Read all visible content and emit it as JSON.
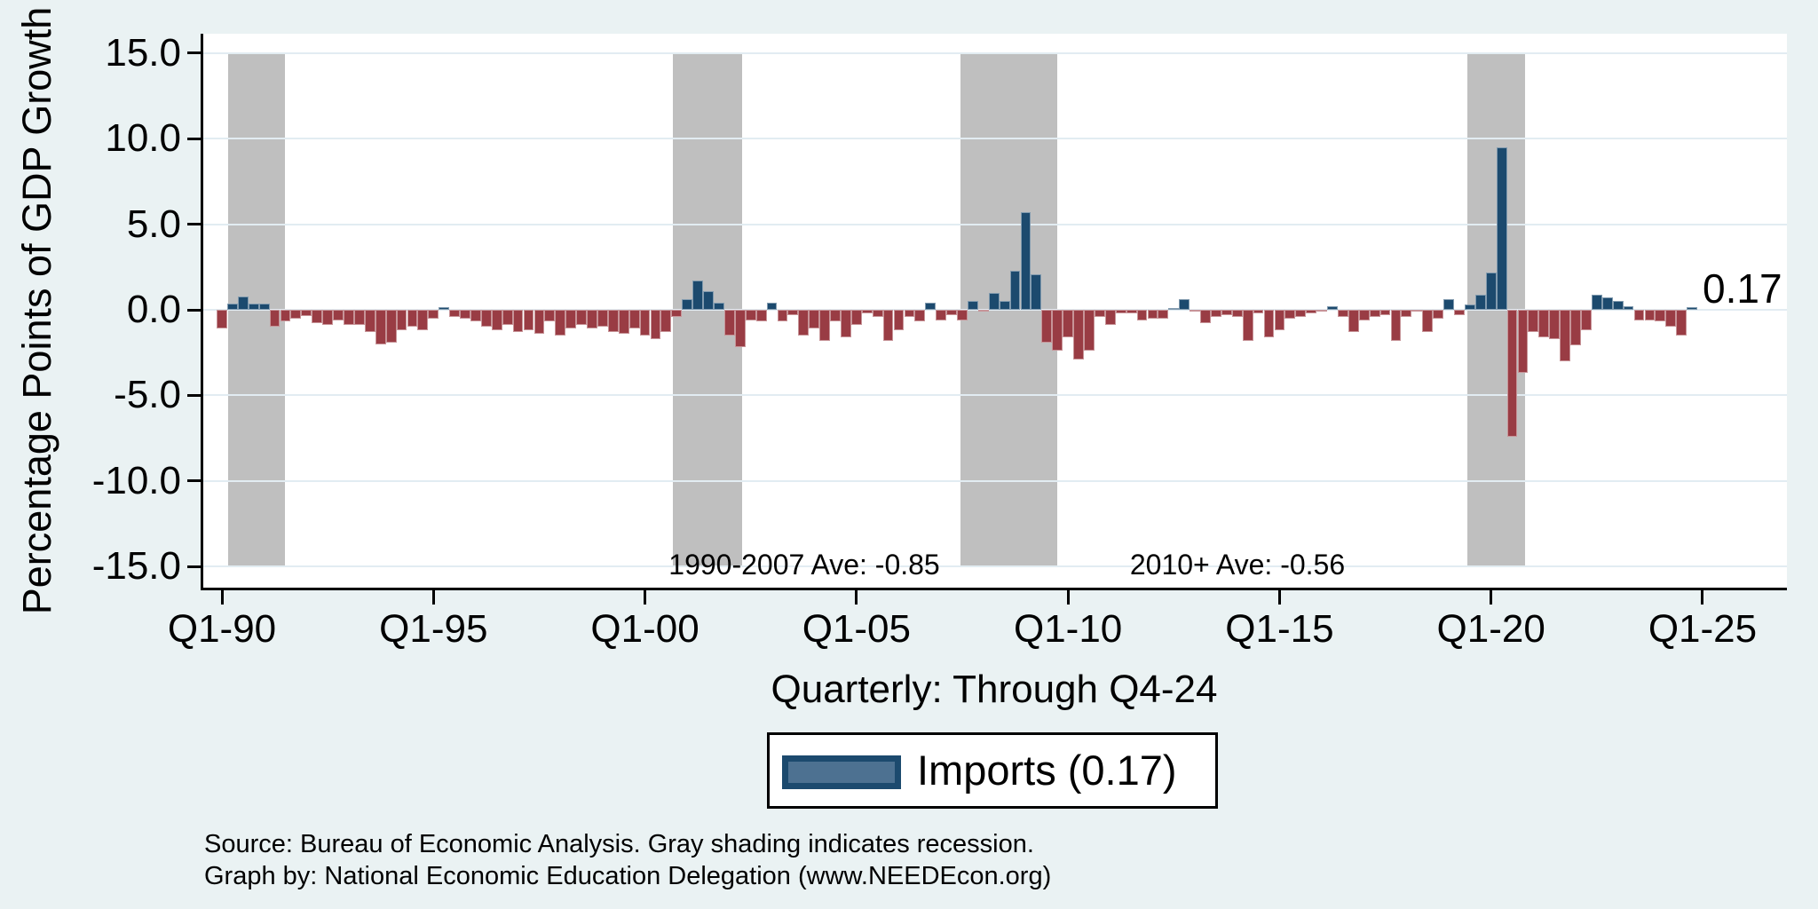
{
  "figure": {
    "y_axis": {
      "title": "Percentage Points of GDP Growth",
      "tick_labels": [
        "15.0",
        "10.0",
        "5.0",
        "0.0",
        "-5.0",
        "-10.0",
        "-15.0"
      ],
      "tick_values": [
        15,
        10,
        5,
        0,
        -5,
        -10,
        -15
      ]
    },
    "x_axis": {
      "title": "Quarterly: Through Q4-24",
      "ticks": [
        {
          "label": "Q1-90",
          "year": 1990
        },
        {
          "label": "Q1-95",
          "year": 1995
        },
        {
          "label": "Q1-00",
          "year": 2000
        },
        {
          "label": "Q1-05",
          "year": 2005
        },
        {
          "label": "Q1-10",
          "year": 2010
        },
        {
          "label": "Q1-15",
          "year": 2015
        },
        {
          "label": "Q1-20",
          "year": 2020
        },
        {
          "label": "Q1-25",
          "year": 2025
        }
      ]
    },
    "annotations": [
      {
        "text": "1990-2007 Ave: -0.85",
        "x_year": 2003.8
      },
      {
        "text": "2010+ Ave: -0.56",
        "x_year": 2014.0
      }
    ],
    "recessions": [
      {
        "start_year": 1990.15,
        "end_year": 1991.5
      },
      {
        "start_year": 2000.65,
        "end_year": 2002.3
      },
      {
        "start_year": 2007.45,
        "end_year": 2009.75
      },
      {
        "start_year": 2019.45,
        "end_year": 2020.8
      }
    ],
    "colors": {
      "background": "#eaf2f3",
      "plot_background": "#ffffff",
      "gridline": "#e2ecf2",
      "positive_bar": "#1c4a6e",
      "negative_bar": "#993c44",
      "recession_band": "#bfbfbf",
      "legend_swatch_fill": "#4d7191",
      "legend_swatch_border": "#1c4a6e",
      "axis": "#000000"
    },
    "legend": {
      "label": "Imports (0.17)"
    },
    "notes": [
      "Source: Bureau of Economic Analysis. Gray shading indicates recession.",
      "Graph by: National Economic Education Delegation (www.NEEDEcon.org)"
    ]
  },
  "chart_data": {
    "type": "bar",
    "series_name": "Imports",
    "frequency": "quarterly",
    "start_quarter": "Q1-1990",
    "end_quarter": "Q4-2024",
    "title": "",
    "xlabel": "Quarterly: Through Q4-24",
    "ylabel": "Percentage Points of GDP Growth",
    "ylim": [
      -15,
      15
    ],
    "latest_value_label": "0.17",
    "latest_value": 0.17,
    "average_1990_2007": -0.85,
    "average_2010_plus": -0.56,
    "values": [
      -1.1,
      0.35,
      0.8,
      0.35,
      0.35,
      -1.0,
      -0.7,
      -0.5,
      -0.35,
      -0.8,
      -0.9,
      -0.6,
      -0.9,
      -0.9,
      -1.3,
      -2.0,
      -1.9,
      -1.2,
      -1.0,
      -1.2,
      -0.5,
      0.15,
      -0.4,
      -0.5,
      -0.7,
      -1.0,
      -1.2,
      -0.9,
      -1.3,
      -1.2,
      -1.4,
      -0.7,
      -1.5,
      -1.1,
      -0.9,
      -1.1,
      -1.0,
      -1.3,
      -1.4,
      -1.1,
      -1.5,
      -1.7,
      -1.3,
      -0.4,
      0.6,
      1.7,
      1.1,
      0.4,
      -1.5,
      -2.2,
      -0.6,
      -0.7,
      0.4,
      -0.7,
      -0.3,
      -1.5,
      -1.1,
      -1.8,
      -0.7,
      -1.6,
      -0.9,
      -0.2,
      -0.4,
      -1.8,
      -1.2,
      -0.4,
      -0.7,
      0.4,
      -0.6,
      -0.3,
      -0.6,
      0.5,
      -0.1,
      1.0,
      0.5,
      2.3,
      5.7,
      2.1,
      -1.9,
      -2.4,
      -1.6,
      -2.9,
      -2.4,
      -0.4,
      -0.9,
      -0.2,
      -0.2,
      -0.6,
      -0.5,
      -0.5,
      0.1,
      0.6,
      -0.1,
      -0.8,
      -0.4,
      -0.3,
      -0.4,
      -1.8,
      -0.2,
      -1.6,
      -1.2,
      -0.5,
      -0.4,
      -0.2,
      -0.1,
      0.2,
      -0.4,
      -1.3,
      -0.6,
      -0.4,
      -0.3,
      -1.8,
      -0.4,
      -0.1,
      -1.3,
      -0.5,
      0.6,
      -0.3,
      0.3,
      0.9,
      2.2,
      9.5,
      -7.4,
      -3.7,
      -1.3,
      -1.6,
      -1.7,
      -3.0,
      -2.1,
      -1.2,
      0.9,
      0.75,
      0.5,
      0.2,
      -0.6,
      -0.6,
      -0.7,
      -1.0,
      -1.5,
      0.17
    ]
  }
}
